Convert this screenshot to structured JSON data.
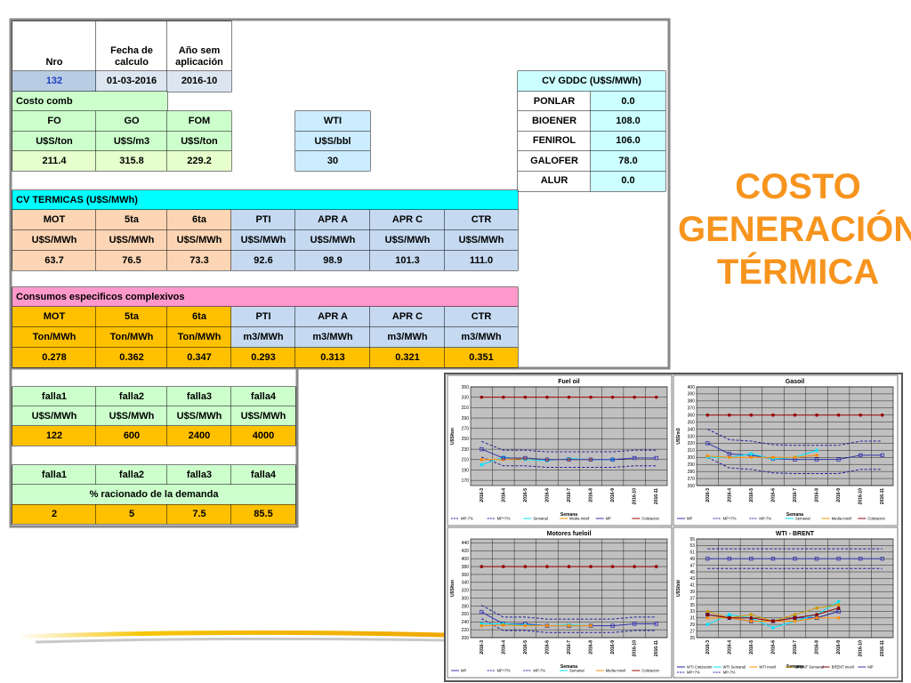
{
  "header": {
    "cols": [
      "Nro",
      "Fecha de calculo",
      "Año sem aplicación"
    ],
    "values": [
      "132",
      "01-03-2016",
      "2016-10"
    ]
  },
  "costo_comb": {
    "title": "Costo comb",
    "headers": [
      "FO",
      "GO",
      "FOM"
    ],
    "units": [
      "U$S/ton",
      "U$S/m3",
      "U$S/ton"
    ],
    "values": [
      "211.4",
      "315.8",
      "229.2"
    ]
  },
  "wti": {
    "header": "WTI",
    "unit": "U$S/bbl",
    "value": "30"
  },
  "cv_gddc": {
    "title": "CV GDDC (U$S/MWh)",
    "rows": [
      [
        "PONLAR",
        "0.0"
      ],
      [
        "BIOENER",
        "108.0"
      ],
      [
        "FENIROL",
        "106.0"
      ],
      [
        "GALOFER",
        "78.0"
      ],
      [
        "ALUR",
        "0.0"
      ]
    ]
  },
  "cv_termicas": {
    "title": "CV TERMICAS (U$S/MWh)",
    "headers": [
      "MOT",
      "5ta",
      "6ta",
      "PTI",
      "APR A",
      "APR C",
      "CTR"
    ],
    "units": [
      "U$S/MWh",
      "U$S/MWh",
      "U$S/MWh",
      "U$S/MWh",
      "U$S/MWh",
      "U$S/MWh",
      "U$S/MWh"
    ],
    "values": [
      "63.7",
      "76.5",
      "73.3",
      "92.6",
      "98.9",
      "101.3",
      "111.0"
    ]
  },
  "consumos": {
    "title": "Consumos especificos complexivos",
    "headers": [
      "MOT",
      "5ta",
      "6ta",
      "PTI",
      "APR A",
      "APR C",
      "CTR"
    ],
    "units": [
      "Ton/MWh",
      "Ton/MWh",
      "Ton/MWh",
      "m3/MWh",
      "m3/MWh",
      "m3/MWh",
      "m3/MWh"
    ],
    "values": [
      "0.278",
      "0.362",
      "0.347",
      "0.293",
      "0.313",
      "0.321",
      "0.351"
    ]
  },
  "fallas": {
    "headers": [
      "falla1",
      "falla2",
      "falla3",
      "falla4"
    ],
    "units": [
      "U$S/MWh",
      "U$S/MWh",
      "U$S/MWh",
      "U$S/MWh"
    ],
    "values": [
      "122",
      "600",
      "2400",
      "4000"
    ]
  },
  "racionado": {
    "headers": [
      "falla1",
      "falla2",
      "falla3",
      "falla4"
    ],
    "label": "% racionado de la demanda",
    "values": [
      "2",
      "5",
      "7.5",
      "85.5"
    ]
  },
  "title_lines": [
    "COSTO",
    "GENERACIÓN",
    "TÉRMICA"
  ],
  "charts": [
    {
      "type": "line",
      "title": "Fuel oil",
      "ylabel": "U$S/ton",
      "xlabel": "Semana",
      "categories": [
        "2016-3",
        "2016-4",
        "2016-5",
        "2016-6",
        "2016-7",
        "2016-8",
        "2016-9",
        "2016-10",
        "2016-11"
      ],
      "ylim": [
        160,
        350
      ],
      "yticks": [
        170,
        190,
        210,
        230,
        250,
        270,
        290,
        310,
        330,
        350
      ],
      "series": [
        {
          "name": "MP-7%",
          "color": "#1f1f9f",
          "dash": true,
          "values": [
            215,
            198,
            198,
            195,
            195,
            195,
            195,
            198,
            198
          ]
        },
        {
          "name": "MP+7%",
          "color": "#1f1f9f",
          "dash": true,
          "values": [
            245,
            228,
            228,
            225,
            225,
            225,
            225,
            228,
            228
          ]
        },
        {
          "name": "Semanal",
          "color": "#00e5ff",
          "marker": "circle",
          "values": [
            200,
            215,
            210,
            208,
            212,
            210,
            210,
            null,
            null
          ]
        },
        {
          "name": "Media movil",
          "color": "#ff8c00",
          "marker": "circle",
          "values": [
            210,
            210,
            212,
            210,
            210,
            210,
            null,
            null,
            null
          ]
        },
        {
          "name": "MP",
          "color": "#3333aa",
          "marker": "square",
          "values": [
            230,
            213,
            213,
            210,
            210,
            210,
            210,
            213,
            213
          ]
        },
        {
          "name": "Cotizacion",
          "color": "#990000",
          "marker": "circle",
          "values": [
            330,
            330,
            330,
            330,
            330,
            330,
            330,
            330,
            330
          ]
        }
      ]
    },
    {
      "type": "line",
      "title": "Gasoil",
      "ylabel": "U$S/m3",
      "xlabel": "Semana",
      "categories": [
        "2016-3",
        "2016-4",
        "2016-5",
        "2016-6",
        "2016-7",
        "2016-8",
        "2016-9",
        "2016-10",
        "2016-11"
      ],
      "ylim": [
        260,
        400
      ],
      "yticks": [
        260,
        270,
        280,
        290,
        300,
        310,
        320,
        330,
        340,
        350,
        360,
        370,
        380,
        390,
        400
      ],
      "series": [
        {
          "name": "MP",
          "color": "#3333aa",
          "marker": "square",
          "values": [
            320,
            305,
            303,
            298,
            297,
            297,
            297,
            303,
            303
          ]
        },
        {
          "name": "MP+7%",
          "color": "#1f1f9f",
          "dash": true,
          "values": [
            340,
            325,
            323,
            318,
            317,
            317,
            317,
            323,
            323
          ]
        },
        {
          "name": "MP-7%",
          "color": "#1f1f9f",
          "dash": true,
          "values": [
            300,
            285,
            283,
            278,
            277,
            277,
            277,
            283,
            283
          ]
        },
        {
          "name": "Semanal",
          "color": "#00e5ff",
          "marker": "circle",
          "values": [
            300,
            300,
            305,
            298,
            300,
            310,
            null,
            null,
            null
          ]
        },
        {
          "name": "Media movil",
          "color": "#ff8c00",
          "marker": "circle",
          "values": [
            302,
            300,
            300,
            300,
            300,
            303,
            null,
            null,
            null
          ]
        },
        {
          "name": "Cotizacion",
          "color": "#990000",
          "marker": "circle",
          "values": [
            360,
            360,
            360,
            360,
            360,
            360,
            360,
            360,
            360
          ]
        }
      ]
    },
    {
      "type": "line",
      "title": "Motores fueloil",
      "ylabel": "U$S/ton",
      "xlabel": "Semana",
      "categories": [
        "2016-3",
        "2016-4",
        "2016-5",
        "2016-6",
        "2016-7",
        "2016-8",
        "2016-9",
        "2016-10",
        "2016-11"
      ],
      "ylim": [
        200,
        450
      ],
      "yticks": [
        200,
        220,
        240,
        260,
        280,
        300,
        320,
        340,
        360,
        380,
        400,
        420,
        440
      ],
      "series": [
        {
          "name": "MP",
          "color": "#3333aa",
          "marker": "square",
          "values": [
            265,
            235,
            235,
            230,
            230,
            230,
            230,
            235,
            235
          ]
        },
        {
          "name": "MP+7%",
          "color": "#1f1f9f",
          "dash": true,
          "values": [
            282,
            252,
            252,
            247,
            247,
            247,
            247,
            252,
            252
          ]
        },
        {
          "name": "MP-7%",
          "color": "#1f1f9f",
          "dash": true,
          "values": [
            248,
            218,
            218,
            213,
            213,
            213,
            213,
            218,
            218
          ]
        },
        {
          "name": "Semanal",
          "color": "#00e5ff",
          "marker": "circle",
          "values": [
            235,
            235,
            232,
            230,
            232,
            230,
            null,
            null,
            null
          ]
        },
        {
          "name": "Media movil",
          "color": "#ff8c00",
          "marker": "circle",
          "values": [
            230,
            232,
            230,
            230,
            230,
            230,
            null,
            null,
            null
          ]
        },
        {
          "name": "Cotizacion",
          "color": "#990000",
          "marker": "circle",
          "values": [
            380,
            380,
            380,
            380,
            380,
            380,
            380,
            380,
            380
          ]
        }
      ]
    },
    {
      "type": "line",
      "title": "WTI - BRENT",
      "ylabel": "U$S/bbl",
      "xlabel": "Semana",
      "categories": [
        "2016-3",
        "2016-4",
        "2016-5",
        "2016-6",
        "2016-7",
        "2016-8",
        "2016-9",
        "2016-10",
        "2016-11"
      ],
      "ylim": [
        25,
        55
      ],
      "yticks": [
        25,
        27,
        29,
        31,
        33,
        35,
        37,
        39,
        41,
        43,
        45,
        47,
        49,
        51,
        53,
        55
      ],
      "series": [
        {
          "name": "WTI Cotizacion",
          "color": "#1f1f9f",
          "marker": "square",
          "values": [
            32,
            31,
            30,
            30,
            31,
            31,
            33,
            null,
            null
          ]
        },
        {
          "name": "WTI Semanal",
          "color": "#00e5ff",
          "marker": "circle",
          "values": [
            29,
            32,
            31,
            28,
            30,
            32,
            36,
            null,
            null
          ]
        },
        {
          "name": "WTI movil",
          "color": "#ff8c00",
          "marker": "circle",
          "values": [
            31,
            31,
            30,
            30,
            30,
            31,
            31,
            null,
            null
          ]
        },
        {
          "name": "BRENT Semanal",
          "color": "#cc9900",
          "marker": "circle",
          "values": [
            33,
            31,
            32,
            30,
            32,
            34,
            35,
            null,
            null
          ]
        },
        {
          "name": "BRENT movil",
          "color": "#880000",
          "marker": "circle",
          "values": [
            32,
            31,
            31,
            30,
            31,
            32,
            34,
            null,
            null
          ]
        },
        {
          "name": "MP",
          "color": "#3333aa",
          "marker": "square",
          "values": [
            49,
            49,
            49,
            49,
            49,
            49,
            49,
            49,
            49
          ]
        },
        {
          "name": "MP+7%",
          "color": "#1f1f9f",
          "dash": true,
          "values": [
            52,
            52,
            52,
            52,
            52,
            52,
            52,
            52,
            52
          ]
        },
        {
          "name": "MP-7%",
          "color": "#1f1f9f",
          "dash": true,
          "values": [
            46,
            46,
            46,
            46,
            46,
            46,
            46,
            46,
            46
          ]
        }
      ]
    }
  ]
}
